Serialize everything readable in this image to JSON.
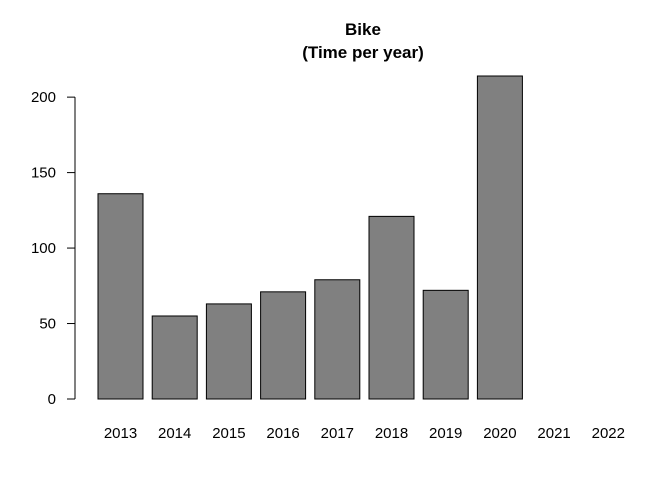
{
  "chart_data": {
    "type": "bar",
    "title": "Bike",
    "subtitle": "(Time per year)",
    "categories": [
      "2013",
      "2014",
      "2015",
      "2016",
      "2017",
      "2018",
      "2019",
      "2020",
      "2021",
      "2022"
    ],
    "values": [
      136,
      55,
      63,
      71,
      79,
      121,
      72,
      214,
      0,
      0
    ],
    "yticks": [
      0,
      50,
      100,
      150,
      200
    ],
    "ylim": [
      0,
      214
    ],
    "xlabel": "",
    "ylabel": "",
    "grid": false,
    "bar_color": "#808080",
    "bar_border_color": "#000000"
  }
}
